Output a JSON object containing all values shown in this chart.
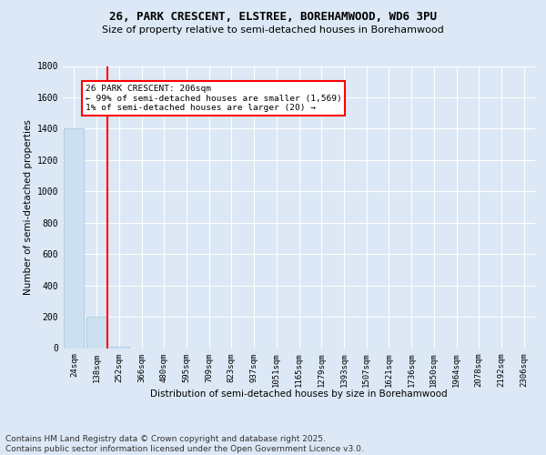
{
  "title1": "26, PARK CRESCENT, ELSTREE, BOREHAMWOOD, WD6 3PU",
  "title2": "Size of property relative to semi-detached houses in Borehamwood",
  "xlabel": "Distribution of semi-detached houses by size in Borehamwood",
  "ylabel": "Number of semi-detached properties",
  "categories": [
    "24sqm",
    "138sqm",
    "252sqm",
    "366sqm",
    "480sqm",
    "595sqm",
    "709sqm",
    "823sqm",
    "937sqm",
    "1051sqm",
    "1165sqm",
    "1279sqm",
    "1393sqm",
    "1507sqm",
    "1621sqm",
    "1736sqm",
    "1850sqm",
    "1964sqm",
    "2078sqm",
    "2192sqm",
    "2306sqm"
  ],
  "values": [
    1400,
    200,
    10,
    0,
    0,
    0,
    0,
    0,
    0,
    0,
    0,
    0,
    0,
    0,
    0,
    0,
    0,
    0,
    0,
    0,
    0
  ],
  "bar_color": "#cce0f0",
  "bar_edge_color": "#a0c4e0",
  "vline_color": "red",
  "vline_x": 1.5,
  "annotation_title": "26 PARK CRESCENT: 206sqm",
  "annotation_line1": "← 99% of semi-detached houses are smaller (1,569)",
  "annotation_line2": "1% of semi-detached houses are larger (20) →",
  "ylim": [
    0,
    1800
  ],
  "yticks": [
    0,
    200,
    400,
    600,
    800,
    1000,
    1200,
    1400,
    1600,
    1800
  ],
  "background_color": "#dce8f5",
  "plot_bg_color": "#dce8f5",
  "footer": "Contains HM Land Registry data © Crown copyright and database right 2025.\nContains public sector information licensed under the Open Government Licence v3.0.",
  "title1_fontsize": 9,
  "title2_fontsize": 8,
  "ylabel_fontsize": 7.5,
  "xlabel_fontsize": 7.5,
  "tick_fontsize": 6.5,
  "ann_fontsize": 6.8,
  "footer_fontsize": 6.5
}
